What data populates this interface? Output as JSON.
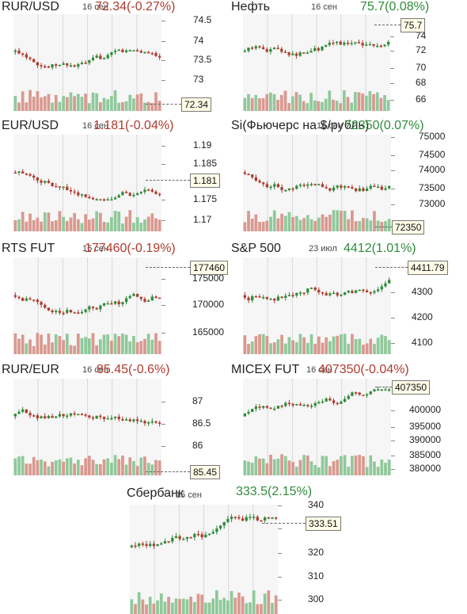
{
  "colors": {
    "up": "#2e8b3a",
    "down": "#b03a2e",
    "vol_up": "#8fc99a",
    "vol_down": "#d9998f",
    "label_box": "#fffde7"
  },
  "panels": [
    {
      "title": "RUR/USD",
      "date": "16 сен",
      "quote": "72.34(-0.27%)",
      "direction": "down",
      "last_label": "72.34",
      "ticks": [
        "74.5",
        "74",
        "73.5",
        "73"
      ]
    },
    {
      "title": "Нефть",
      "date": "16 сен",
      "quote": "75.7(0.08%)",
      "direction": "up",
      "last_label": "75.7",
      "ticks": [
        "74",
        "72",
        "70",
        "68",
        "66"
      ]
    },
    {
      "title": "EUR/USD",
      "date": "16 сен",
      "quote": "1.181(-0.04%)",
      "direction": "down",
      "last_label": "1.181",
      "ticks": [
        "1.19",
        "1.185",
        "1.175",
        "1.17"
      ]
    },
    {
      "title": "Si(Фьючерс на $/рубль)",
      "date": "16 сен",
      "quote": "72350(0.07%)",
      "direction": "up",
      "last_label": "72350",
      "ticks": [
        "75000",
        "74500",
        "74000",
        "73500",
        "73000"
      ]
    },
    {
      "title": "RTS FUT",
      "date": "16 сен",
      "quote": "177460(-0.19%)",
      "direction": "down",
      "last_label": "177460",
      "ticks": [
        "175000",
        "170000",
        "165000"
      ]
    },
    {
      "title": "S&P 500",
      "date": "23 июл",
      "quote": "4412(1.01%)",
      "direction": "up",
      "last_label": "4411.79",
      "ticks": [
        "4300",
        "4200",
        "4100"
      ]
    },
    {
      "title": "RUR/EUR",
      "date": "16 сен",
      "quote": "85.45(-0.6%)",
      "direction": "down",
      "last_label": "85.45",
      "ticks": [
        "87",
        "86.5",
        "86"
      ]
    },
    {
      "title": "MICEX FUT",
      "date": "16 сен",
      "quote": "407350(-0.04%)",
      "direction": "down",
      "last_label": "407350",
      "ticks": [
        "400000",
        "395000",
        "390000",
        "385000",
        "380000"
      ]
    },
    {
      "title": "Сбербанк",
      "date": "15 сен",
      "quote": "333.5(2.15%)",
      "direction": "up",
      "last_label": "333.51",
      "ticks": [
        "340",
        "330",
        "320",
        "310",
        "300"
      ]
    }
  ]
}
